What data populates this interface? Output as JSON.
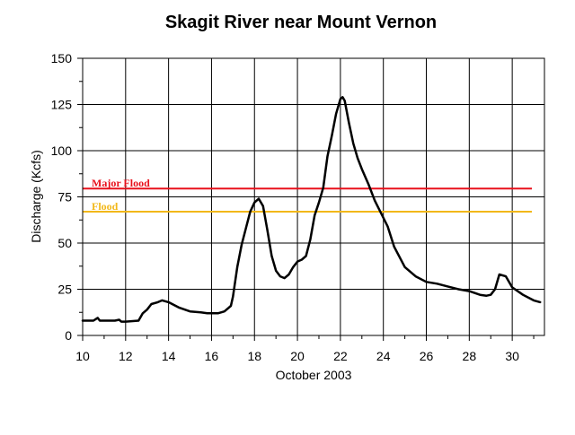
{
  "chart_data": {
    "type": "line",
    "title": "Skagit River near Mount Vernon",
    "xlabel": "October 2003",
    "ylabel": "Discharge (Kcfs)",
    "xlim": [
      10,
      31.5
    ],
    "ylim": [
      0,
      150
    ],
    "x_ticks": [
      10,
      12,
      14,
      16,
      18,
      20,
      22,
      24,
      26,
      28,
      30
    ],
    "x_tick_labels": [
      "10",
      "12",
      "14",
      "16",
      "18",
      "20",
      "22",
      "24",
      "26",
      "28",
      "30"
    ],
    "y_ticks": [
      0,
      25,
      50,
      75,
      100,
      125,
      150
    ],
    "y_tick_labels": [
      "0",
      "25",
      "50",
      "75",
      "100",
      "125",
      "150"
    ],
    "grid": true,
    "series": [
      {
        "color": "#000000",
        "x": [
          10.0,
          10.5,
          10.7,
          10.8,
          11.0,
          11.5,
          11.7,
          11.8,
          12.0,
          12.6,
          12.8,
          13.0,
          13.2,
          13.5,
          13.7,
          14.0,
          14.5,
          15.0,
          15.5,
          15.8,
          16.0,
          16.3,
          16.6,
          16.9,
          17.0,
          17.2,
          17.4,
          17.6,
          17.8,
          18.0,
          18.2,
          18.4,
          18.6,
          18.8,
          19.0,
          19.2,
          19.4,
          19.6,
          19.8,
          20.0,
          20.2,
          20.4,
          20.6,
          20.8,
          21.0,
          21.2,
          21.4,
          21.6,
          21.8,
          22.0,
          22.1,
          22.2,
          22.4,
          22.6,
          22.8,
          23.0,
          23.3,
          23.6,
          23.9,
          24.2,
          24.5,
          25.0,
          25.5,
          26.0,
          26.5,
          27.0,
          27.5,
          28.0,
          28.5,
          28.8,
          29.0,
          29.2,
          29.4,
          29.7,
          30.0,
          30.5,
          31.0,
          31.3
        ],
        "y": [
          8,
          8,
          9.5,
          8,
          8,
          8,
          8.5,
          7.5,
          7.5,
          8,
          12,
          14,
          17,
          18,
          19,
          18,
          15,
          13,
          12.5,
          12,
          12,
          12,
          13,
          16,
          21,
          37,
          49,
          58,
          67,
          72,
          74,
          70,
          57,
          43,
          35,
          32,
          31,
          33,
          37,
          40,
          41,
          43,
          52,
          65,
          72,
          80,
          97,
          108,
          120,
          128,
          129,
          127,
          115,
          104,
          96,
          90,
          82,
          73,
          66,
          59,
          48,
          37,
          32,
          29,
          28,
          26.5,
          25,
          24,
          22,
          21.5,
          22,
          25,
          33,
          32,
          26,
          22,
          19,
          18
        ],
        "line_width": "thick"
      }
    ],
    "thresholds": [
      {
        "label": "Major Flood",
        "value": 79.5,
        "color": "#e8101b"
      },
      {
        "label": "Flood",
        "value": 67,
        "color": "#f2b81a"
      }
    ]
  }
}
